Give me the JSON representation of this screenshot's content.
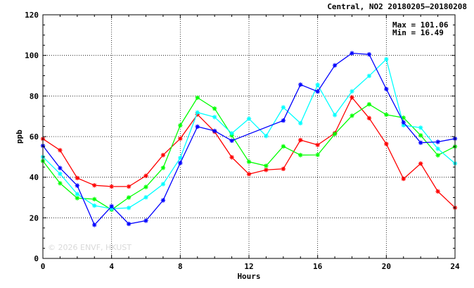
{
  "header": {
    "title": "Central, NO2 20180205—20180208"
  },
  "stats": {
    "max_text": "Max = 101.06",
    "min_text": "Min =  16.49"
  },
  "watermark": "© 2026  ENVF, HKUST",
  "chart_data": {
    "type": "line",
    "title": "Central, NO2 20180205—20180208",
    "xlabel": "Hours",
    "ylabel": "ppb",
    "xlim": [
      0,
      24
    ],
    "ylim": [
      0,
      120
    ],
    "xticks": [
      0,
      4,
      8,
      12,
      16,
      20,
      24
    ],
    "yticks": [
      0,
      20,
      40,
      60,
      80,
      100,
      120
    ],
    "grid": true,
    "marker": "asterisk",
    "x": [
      0,
      1,
      2,
      3,
      4,
      5,
      6,
      7,
      8,
      9,
      10,
      11,
      12,
      13,
      14,
      15,
      16,
      17,
      18,
      19,
      20,
      21,
      22,
      23,
      24
    ],
    "series": [
      {
        "color": "#ff0000",
        "values": [
          58.9,
          53.3,
          39.6,
          36.0,
          35.4,
          35.4,
          40.7,
          50.9,
          59.0,
          70.9,
          62.4,
          49.8,
          41.5,
          43.6,
          44.1,
          58.3,
          55.9,
          61.7,
          79.3,
          69.1,
          56.4,
          39.2,
          46.7,
          33.0,
          25.0
        ]
      },
      {
        "color": "#00ff00",
        "values": [
          48.0,
          37.0,
          29.7,
          29.2,
          24.0,
          30.0,
          35.2,
          44.6,
          65.5,
          79.2,
          73.8,
          60.6,
          47.6,
          45.6,
          55.2,
          50.9,
          51.0,
          61.3,
          70.3,
          75.9,
          70.8,
          69.3,
          60.6,
          50.8,
          55.1
        ]
      },
      {
        "color": "#00ffff",
        "values": [
          50.0,
          41.7,
          31.7,
          26.0,
          24.5,
          24.9,
          30.1,
          36.6,
          49.5,
          71.9,
          69.6,
          61.6,
          68.8,
          60.3,
          74.4,
          66.6,
          85.5,
          70.6,
          82.3,
          89.9,
          98.1,
          65.6,
          64.4,
          54.0,
          46.8
        ]
      },
      {
        "color": "#0000ff",
        "values": [
          55.5,
          44.5,
          35.9,
          16.5,
          25.7,
          17.0,
          18.6,
          28.6,
          47.0,
          64.9,
          62.8,
          58.0,
          null,
          null,
          67.9,
          85.6,
          82.2,
          95.1,
          101.06,
          100.5,
          83.4,
          67.0,
          57.0,
          57.4,
          59.0
        ]
      }
    ]
  }
}
